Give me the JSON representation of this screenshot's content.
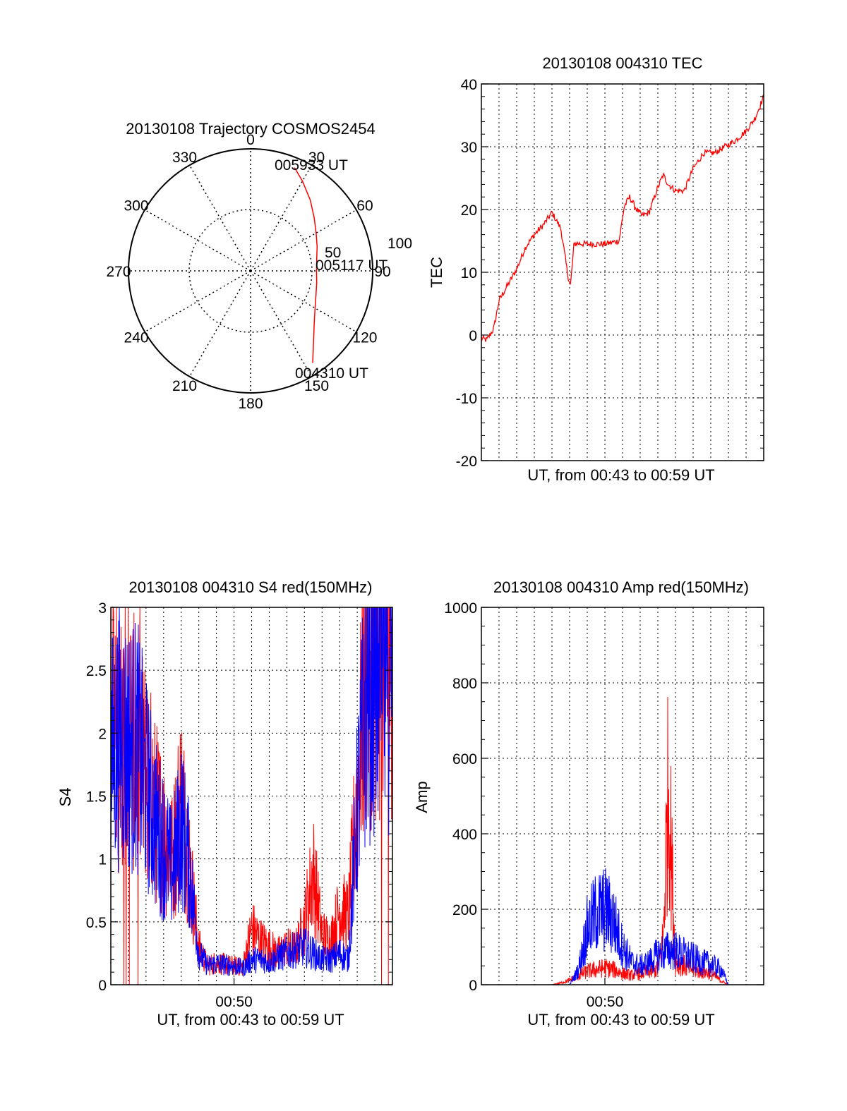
{
  "colors": {
    "red": "#ff0000",
    "blue": "#0000ff",
    "grid": "#000000",
    "axes": "#000000"
  },
  "chart_data": [
    {
      "id": "polar",
      "type": "scatter",
      "projection": "polar",
      "title": "20130108 Trajectory COSMOS2454",
      "angle_ticks": [
        "0",
        "30",
        "60",
        "90",
        "120",
        "150",
        "180",
        "210",
        "240",
        "270",
        "300",
        "330"
      ],
      "angle_values": [
        0,
        30,
        60,
        90,
        120,
        150,
        180,
        210,
        240,
        270,
        300,
        330
      ],
      "radial_ticks": [
        "50",
        "100"
      ],
      "radial_values": [
        50,
        100
      ],
      "rlim": [
        0,
        100
      ],
      "grid": true,
      "annotations": [
        "005933 UT",
        "005117 UT",
        "004310 UT"
      ],
      "series": [
        {
          "color": "#ff0000",
          "azimuth_deg": [
            23,
            30,
            40,
            50,
            60,
            70,
            80,
            90,
            100,
            110,
            120,
            130,
            140,
            146
          ],
          "radius": [
            92,
            85,
            76,
            68,
            62,
            58,
            55,
            54,
            55,
            57,
            61,
            68,
            80,
            91
          ]
        }
      ]
    },
    {
      "id": "tec",
      "type": "line",
      "title": "20130108 004310 TEC",
      "xlabel": "UT, from 00:43 to 00:59 UT",
      "ylabel": "TEC",
      "xlim_minutes_after_0043": [
        0,
        16
      ],
      "ylim": [
        -20,
        40
      ],
      "yticks": [
        "40",
        "30",
        "20",
        "10",
        "0",
        "-10",
        "-20"
      ],
      "ytick_values": [
        40,
        30,
        20,
        10,
        0,
        -10,
        -20
      ],
      "grid": true,
      "series": [
        {
          "color": "#ff0000",
          "x_minutes_after_0043": [
            0,
            0.3,
            0.7,
            1.0,
            1.5,
            2.0,
            2.5,
            3.0,
            3.5,
            4.0,
            4.5,
            4.9,
            5.05,
            5.25,
            5.4,
            6.0,
            7.0,
            7.8,
            8.1,
            8.4,
            8.8,
            9.1,
            9.5,
            10.0,
            10.3,
            10.6,
            11.0,
            11.5,
            12.0,
            12.6,
            13.2,
            13.8,
            14.4,
            15.0,
            15.5,
            16.0
          ],
          "values": [
            -0.5,
            -0.8,
            1.0,
            5.5,
            8.0,
            10.5,
            14.0,
            16.0,
            17.5,
            19.5,
            17.0,
            9.5,
            7.8,
            14.5,
            14.6,
            14.5,
            14.5,
            15.0,
            20.5,
            22.0,
            20.0,
            19.0,
            19.5,
            23.5,
            25.5,
            24.0,
            23.0,
            23.0,
            26.5,
            29.0,
            29.0,
            30.0,
            31.0,
            32.5,
            34.5,
            38.0
          ]
        }
      ]
    },
    {
      "id": "s4",
      "type": "line",
      "title": "20130108 004310 S4 red(150MHz)",
      "xlabel": "UT, from 00:43 to 00:59 UT",
      "ylabel": "S4",
      "xticks": [
        "00:50"
      ],
      "xtick_values_minutes_after_0043": [
        7
      ],
      "xlim_minutes_after_0043": [
        0,
        16
      ],
      "ylim": [
        0,
        3
      ],
      "yticks": [
        "3",
        "2.5",
        "2",
        "1.5",
        "1",
        "0.5",
        "0"
      ],
      "ytick_values": [
        3,
        2.5,
        2,
        1.5,
        1,
        0.5,
        0
      ],
      "grid": true,
      "series": [
        {
          "color": "#ff0000",
          "x_minutes_after_0043": [
            0,
            0.5,
            1.0,
            1.5,
            2.0,
            2.5,
            3.0,
            3.5,
            4.0,
            4.5,
            5.0,
            5.5,
            6.0,
            6.5,
            7.0,
            7.5,
            8.0,
            8.5,
            9.0,
            9.5,
            10.0,
            10.5,
            11.0,
            11.5,
            12.0,
            12.5,
            13.0,
            13.5,
            14.0,
            14.5,
            15.0,
            15.5,
            16.0
          ],
          "values": [
            2.2,
            1.9,
            2.1,
            1.8,
            1.7,
            1.4,
            1.2,
            1.0,
            1.5,
            0.9,
            0.3,
            0.15,
            0.18,
            0.16,
            0.15,
            0.14,
            0.45,
            0.35,
            0.3,
            0.25,
            0.3,
            0.28,
            0.5,
            0.9,
            0.4,
            0.35,
            0.6,
            0.55,
            1.5,
            2.6,
            2.8,
            2.7,
            2.9
          ]
        },
        {
          "color": "#0000ff",
          "x_minutes_after_0043": [
            0,
            0.5,
            1.0,
            1.5,
            2.0,
            2.5,
            3.0,
            3.5,
            4.0,
            4.5,
            5.0,
            5.5,
            6.0,
            6.5,
            7.0,
            7.5,
            8.0,
            8.5,
            9.0,
            9.5,
            10.0,
            10.5,
            11.0,
            11.5,
            12.0,
            12.5,
            13.0,
            13.5,
            14.0,
            14.5,
            15.0,
            15.5,
            16.0
          ],
          "values": [
            1.8,
            2.0,
            1.9,
            1.9,
            1.6,
            1.3,
            1.1,
            0.9,
            1.3,
            0.9,
            0.25,
            0.15,
            0.17,
            0.16,
            0.15,
            0.13,
            0.2,
            0.2,
            0.18,
            0.22,
            0.25,
            0.28,
            0.3,
            0.25,
            0.2,
            0.2,
            0.25,
            0.2,
            1.4,
            2.3,
            2.6,
            2.5,
            2.7
          ]
        }
      ]
    },
    {
      "id": "amp",
      "type": "line",
      "title": "20130108 004310 Amp red(150MHz)",
      "xlabel": "UT, from 00:43 to 00:59 UT",
      "ylabel": "Amp",
      "xticks": [
        "00:50"
      ],
      "xtick_values_minutes_after_0043": [
        7
      ],
      "xlim_minutes_after_0043": [
        0,
        16
      ],
      "ylim": [
        0,
        1000
      ],
      "yticks": [
        "1000",
        "800",
        "600",
        "400",
        "200",
        "0"
      ],
      "ytick_values": [
        1000,
        800,
        600,
        400,
        200,
        0
      ],
      "grid": true,
      "series": [
        {
          "color": "#ff0000",
          "x_minutes_after_0043": [
            0,
            4.0,
            4.5,
            5.0,
            5.5,
            6.0,
            6.5,
            7.0,
            7.5,
            8.0,
            8.5,
            9.0,
            9.5,
            10.0,
            10.3,
            10.6,
            11.0,
            11.5,
            12.0,
            12.5,
            13.0,
            13.6,
            14.0,
            16.0
          ],
          "values": [
            0,
            0,
            5,
            12,
            25,
            35,
            40,
            45,
            40,
            30,
            25,
            30,
            35,
            40,
            120,
            540,
            60,
            50,
            40,
            35,
            30,
            10,
            0,
            0
          ]
        },
        {
          "color": "#0000ff",
          "x_minutes_after_0043": [
            0,
            5.0,
            5.5,
            6.0,
            6.5,
            7.0,
            7.5,
            8.0,
            8.5,
            9.0,
            9.5,
            10.0,
            10.5,
            11.0,
            11.5,
            12.0,
            12.5,
            13.0,
            13.6,
            14.0,
            16.0
          ],
          "values": [
            0,
            0,
            40,
            150,
            190,
            200,
            170,
            100,
            60,
            50,
            60,
            80,
            90,
            90,
            80,
            70,
            60,
            55,
            40,
            0,
            0
          ]
        }
      ]
    }
  ]
}
